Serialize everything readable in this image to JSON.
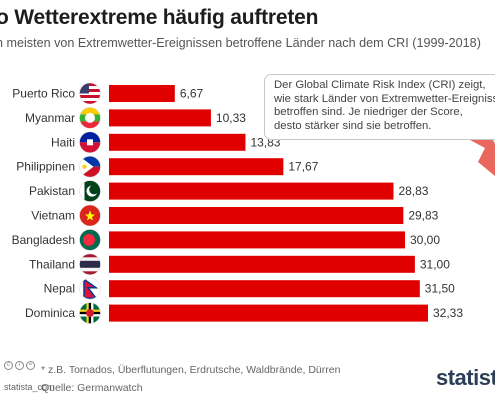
{
  "header": {
    "title": "o Wetterextreme häufig auftreten",
    "subtitle": "n meisten von Extremwetter-Ereignissen betroffene Länder nach dem CRI (1999-2018)"
  },
  "info_box": {
    "lines": [
      "Der Global Climate Risk Index (CRI) zeigt,",
      "wie stark Länder von Extremwetter-Ereignissen",
      "betroffen sind. Je niedriger der Score,",
      "desto stärker sind sie betroffen."
    ]
  },
  "footer": {
    "footnote": "* z.B. Tornados, Überflutungen, Erdrutsche, Waldbrände, Dürren",
    "source": "Quelle: Germanwatch",
    "credit": "statista_com",
    "brand": "statista"
  },
  "colors": {
    "bar": "#e00000",
    "accent_decoration": "#e85a4f"
  },
  "chart_data": {
    "type": "bar",
    "orientation": "horizontal",
    "categories": [
      "Puerto Rico",
      "Myanmar",
      "Haiti",
      "Philippinen",
      "Pakistan",
      "Vietnam",
      "Bangladesh",
      "Thailand",
      "Nepal",
      "Dominica"
    ],
    "values": [
      6.67,
      10.33,
      13.83,
      17.67,
      28.83,
      29.83,
      30.0,
      31.0,
      31.5,
      32.33
    ],
    "value_labels": [
      "6,67",
      "10,33",
      "13,83",
      "17,67",
      "28,83",
      "29,83",
      "30,00",
      "31,00",
      "31,50",
      "32,33"
    ],
    "flags": [
      "us-flag-icon",
      "myanmar-flag-icon",
      "haiti-flag-icon",
      "philippines-flag-icon",
      "pakistan-flag-icon",
      "vietnam-flag-icon",
      "bangladesh-flag-icon",
      "thailand-flag-icon",
      "nepal-flag-icon",
      "dominica-flag-icon"
    ],
    "xlim": [
      0,
      32.33
    ],
    "grid": false
  }
}
